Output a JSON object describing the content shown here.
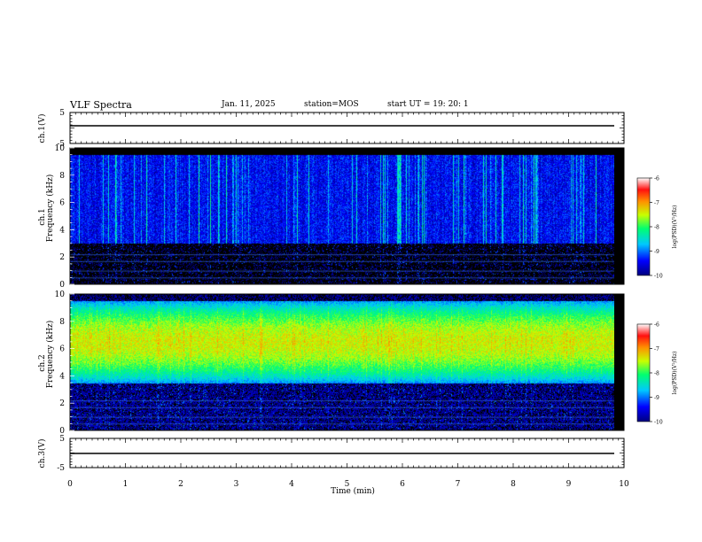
{
  "header": {
    "title": "VLF Spectra",
    "date": "Jan. 11, 2025",
    "station": "station=MOS",
    "start": "start  UT =   19: 20: 1"
  },
  "chart_data": {
    "type": "heatmap",
    "xlabel": "Time  (min)",
    "xlim": [
      0,
      10
    ],
    "x_ticks": [
      "0",
      "1",
      "2",
      "3",
      "4",
      "5",
      "6",
      "7",
      "8",
      "9",
      "10"
    ],
    "panels": [
      {
        "id": "ch1-voltage",
        "ylabel": "ch.1(V)",
        "ylim": [
          -5,
          5
        ],
        "y_ticks": [
          "5",
          "-5"
        ],
        "trace_level": 0
      },
      {
        "id": "ch1-spectrogram",
        "ylabel": "ch.1\nFrequency (kHz)",
        "ylim": [
          0,
          10
        ],
        "y_ticks": [
          "0",
          "2",
          "4",
          "6",
          "8",
          "10"
        ],
        "colorbar": {
          "label": "log(PSD)(V²/Hz)",
          "range": [
            -10,
            -6
          ],
          "ticks": [
            "-6",
            "-7",
            "-8",
            "-9",
            "-10"
          ]
        },
        "typical_band_khz": [
          3,
          9.5
        ],
        "typical_level": -9.2
      },
      {
        "id": "ch2-spectrogram",
        "ylabel": "ch.2\nFrequency (kHz)",
        "ylim": [
          0,
          10
        ],
        "y_ticks": [
          "0",
          "2",
          "4",
          "6",
          "8",
          "10"
        ],
        "colorbar": {
          "label": "log(PSD)(V²/Hz)",
          "range": [
            -10,
            -6
          ],
          "ticks": [
            "-6",
            "-7",
            "-8",
            "-9",
            "-10"
          ]
        },
        "peak_freq_khz": 6.5,
        "peak_level": -7.2,
        "band_khz": [
          3.5,
          9.5
        ]
      },
      {
        "id": "ch3-voltage",
        "ylabel": "ch.3(V)",
        "ylim": [
          -5,
          5
        ],
        "y_ticks": [
          "5",
          "-5"
        ],
        "trace_level": 0
      }
    ]
  },
  "colors": {
    "colormap": [
      "#00007f",
      "#0000ff",
      "#00c0ff",
      "#00ff80",
      "#c0ff00",
      "#ffc000",
      "#ff2000",
      "#ffffff"
    ]
  }
}
